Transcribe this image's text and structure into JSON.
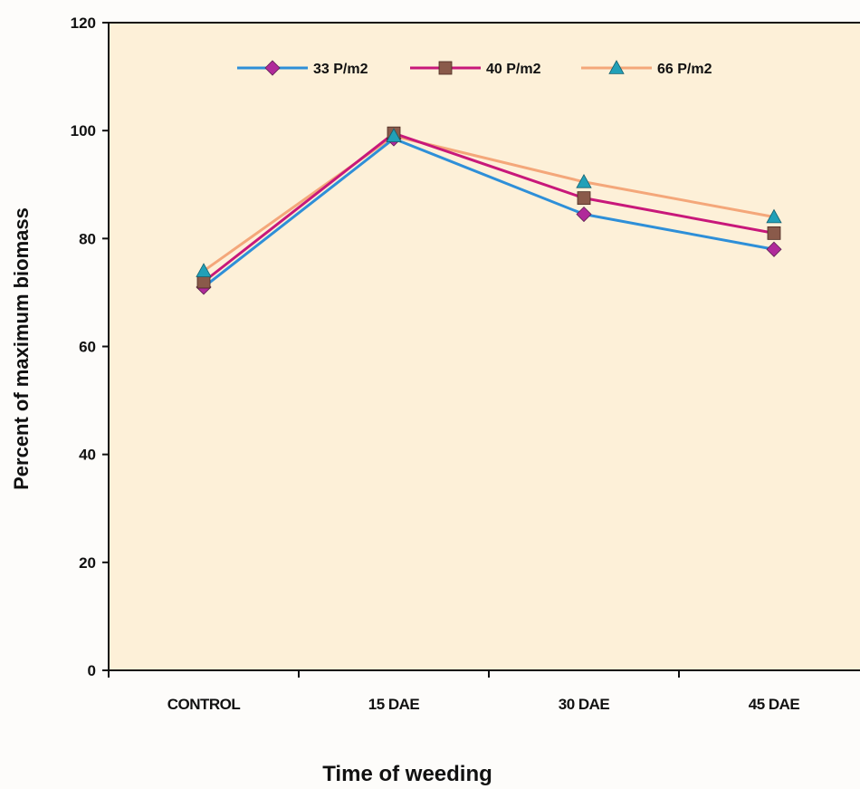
{
  "chart_data": {
    "type": "line",
    "title": "",
    "xlabel": "Time of weeding",
    "ylabel": "Percent of maximum biomass",
    "categories": [
      "CONTROL",
      "15 DAE",
      "30 DAE",
      "45 DAE"
    ],
    "ylim": [
      0,
      120
    ],
    "yticks": [
      0,
      20,
      40,
      60,
      80,
      100,
      120
    ],
    "legend_position": "top",
    "grid": false,
    "plot_background": "#fdf0d8",
    "series": [
      {
        "name": "33 P/m2",
        "values": [
          71,
          98.5,
          84.5,
          78
        ],
        "color": "#2e8fd8",
        "marker": "diamond",
        "marker_color": "#b02a9a"
      },
      {
        "name": "40 P/m2",
        "values": [
          72,
          99.5,
          87.5,
          81
        ],
        "color": "#c8187a",
        "marker": "square",
        "marker_color": "#8a5a4a"
      },
      {
        "name": "66 P/m2",
        "values": [
          74,
          99,
          90.5,
          84
        ],
        "color": "#f4a77a",
        "marker": "triangle",
        "marker_color": "#22a0b8"
      }
    ]
  }
}
